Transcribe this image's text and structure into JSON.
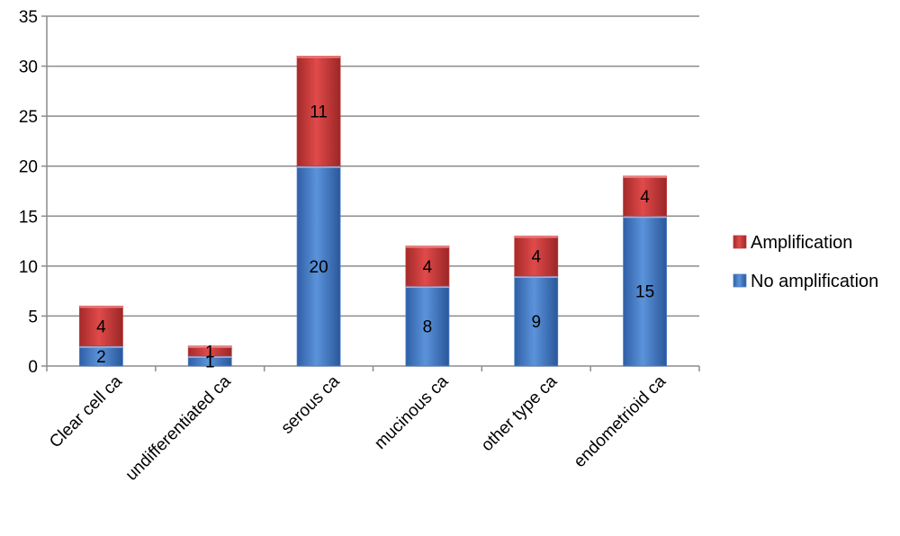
{
  "chart_data": {
    "type": "bar",
    "stacked": true,
    "categories": [
      "Clear cell ca",
      "undifferentiated ca",
      "serous ca",
      "mucinous ca",
      "other type ca",
      "endometrioid ca"
    ],
    "series": [
      {
        "name": "No amplification",
        "values": [
          2,
          1,
          20,
          8,
          9,
          15
        ],
        "color": "#4a7ec8"
      },
      {
        "name": "Amplification",
        "values": [
          4,
          1,
          11,
          4,
          4,
          4
        ],
        "color": "#c0393a"
      }
    ],
    "ylim": [
      0,
      35
    ],
    "yticks": [
      0,
      5,
      10,
      15,
      20,
      25,
      30,
      35
    ],
    "grid": true,
    "legend_position": "right",
    "data_labels": true,
    "xlabel": "",
    "ylabel": "",
    "title": ""
  }
}
